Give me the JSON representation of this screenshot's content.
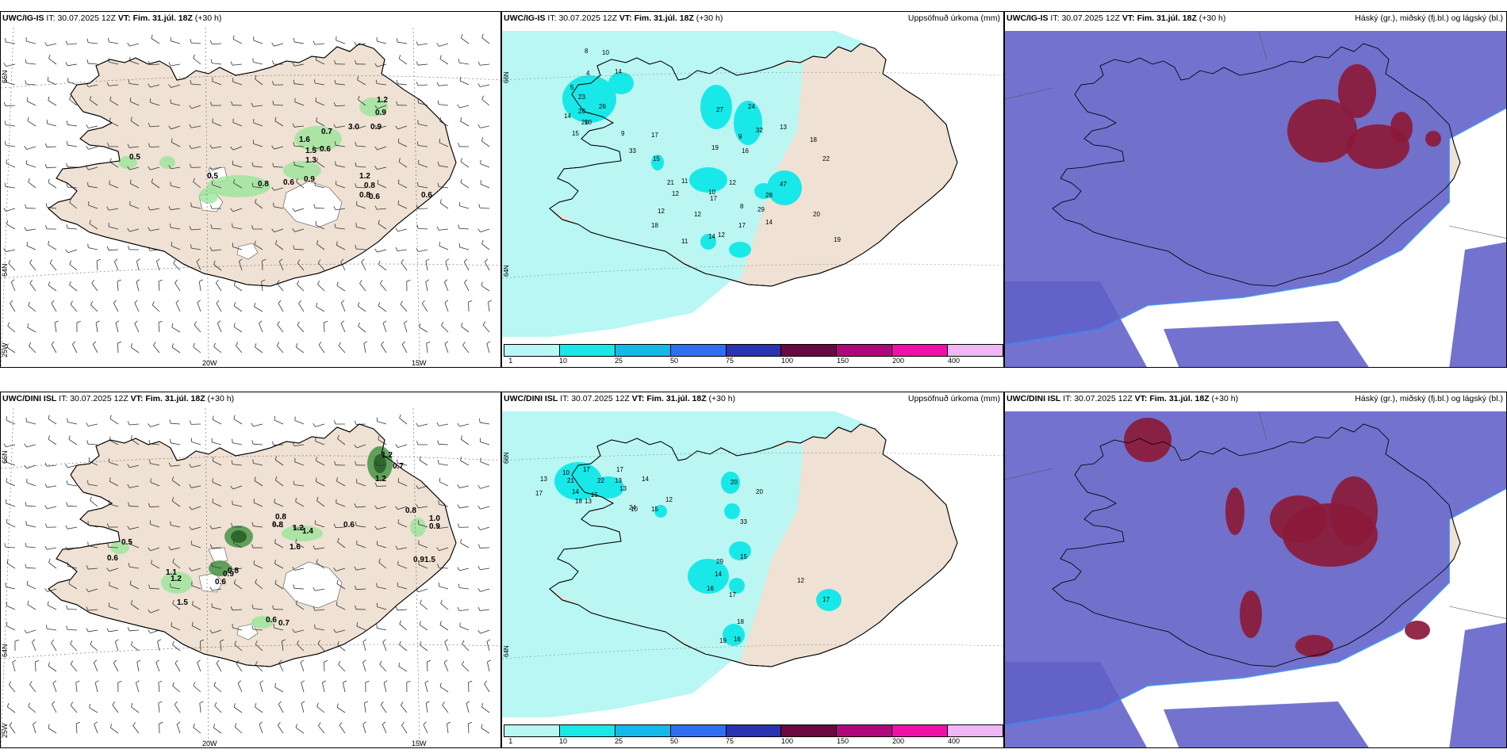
{
  "header": {
    "it_label": "IT:",
    "vt_label": "VT:",
    "issue_time": "30.07.2025 12Z",
    "valid_time": "Fim. 31.júl. 18Z",
    "lead": "(+30 h)"
  },
  "models": {
    "top": "UWC/IG-IS",
    "bottom": "UWC/DINI ISL"
  },
  "panel_titles": {
    "precip": "Uppsöfnuð úrkoma (mm)",
    "clouds": "Háský (gr.), miðský (fj.bl.) og lágský (bl.)"
  },
  "axis_labels": {
    "lat66": "66N",
    "lat64": "64N",
    "lon20": "20W",
    "lon15": "15W",
    "lon25": "25W"
  },
  "colorbar": {
    "ticks": [
      "1",
      "10",
      "25",
      "50",
      "75",
      "100",
      "150",
      "200",
      "400"
    ],
    "colors": [
      "#b8f7f3",
      "#19e8e8",
      "#13b9e9",
      "#2f6ef2",
      "#2a33b2",
      "#6b0840",
      "#b0087a",
      "#f010a8",
      "#f0b7f5"
    ]
  },
  "colors": {
    "land": "#efe1d3",
    "precip_light": "#b8f7f3",
    "precip_mid": "#19e8e8",
    "high_cloud": "#6060c8",
    "mid_cloud": "#8b1a3a",
    "low_cloud": "#3a8af0"
  },
  "wind_values_top": [
    "1.2",
    "0.9",
    "0.9",
    "0.7",
    "1.6",
    "1.5",
    "0.6",
    "1.3",
    "0.5",
    "0.5",
    "0.8",
    "0.6",
    "0.9",
    "1.2",
    "0.8",
    "0.8",
    "0.6",
    "0.6",
    "3.0"
  ],
  "wind_values_bottom": [
    "1.2",
    "0.7",
    "1.2",
    "0.8",
    "1.0",
    "0.9",
    "0.9",
    "1.5",
    "0.8",
    "0.8",
    "1.2",
    "1.4",
    "0.6",
    "1.6",
    "0.5",
    "0.6",
    "1.1",
    "1.2",
    "0.6",
    "0.9",
    "0.6",
    "0.7",
    "0.8",
    "1.5"
  ],
  "precip_values_top": [
    "8",
    "10",
    "14",
    "5",
    "4",
    "23",
    "26",
    "20",
    "15",
    "28",
    "14",
    "10",
    "9",
    "27",
    "24",
    "32",
    "13",
    "18",
    "22",
    "19",
    "16",
    "17",
    "33",
    "15",
    "11",
    "21",
    "12",
    "17",
    "12",
    "14",
    "12",
    "47",
    "28",
    "29",
    "14",
    "20",
    "19",
    "8",
    "17",
    "12",
    "18",
    "9",
    "12",
    "10",
    "11"
  ],
  "precip_values_bottom": [
    "13",
    "17",
    "14",
    "18",
    "22",
    "10",
    "21",
    "17",
    "13",
    "20",
    "12",
    "13",
    "15",
    "24",
    "33",
    "15",
    "29",
    "14",
    "17",
    "16",
    "17",
    "18",
    "16",
    "19",
    "12",
    "10",
    "15",
    "13",
    "14",
    "17",
    "20"
  ]
}
